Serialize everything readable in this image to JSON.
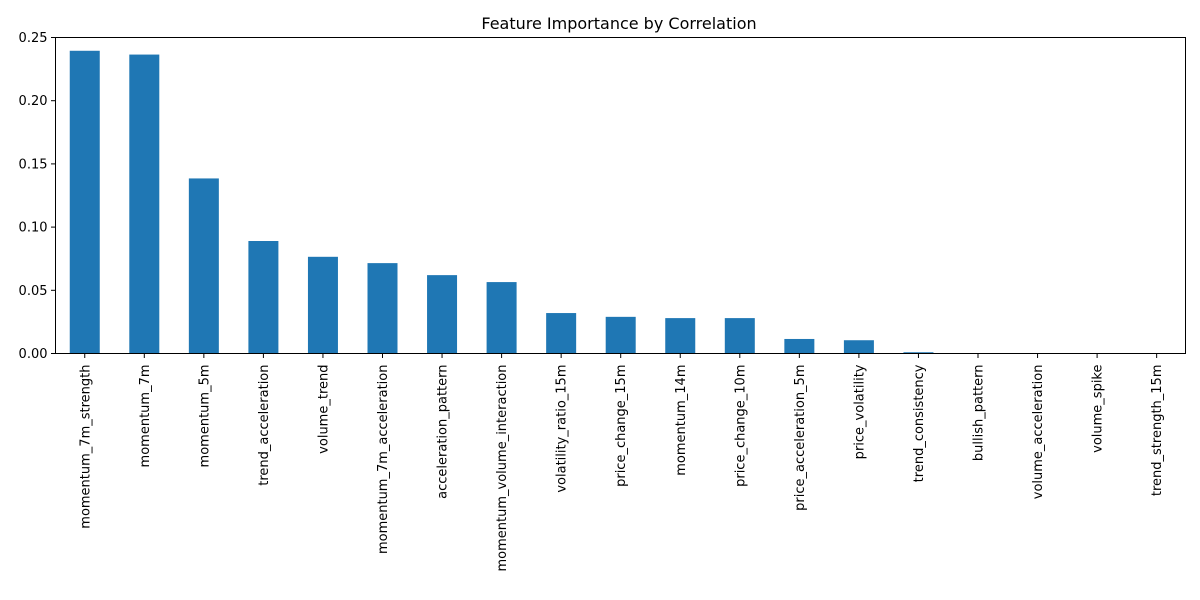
{
  "chart_data": {
    "type": "bar",
    "title": "Feature Importance by Correlation",
    "xlabel": "",
    "ylabel": "",
    "categories": [
      "momentum_7m_strength",
      "momentum_7m",
      "momentum_5m",
      "trend_acceleration",
      "volume_trend",
      "momentum_7m_acceleration",
      "acceleration_pattern",
      "momentum_volume_interaction",
      "volatility_ratio_15m",
      "price_change_15m",
      "momentum_14m",
      "price_change_10m",
      "price_acceleration_5m",
      "price_volatility",
      "trend_consistency",
      "bullish_pattern",
      "volume_acceleration",
      "volume_spike",
      "trend_strength_15m"
    ],
    "values": [
      0.2395,
      0.2365,
      0.1385,
      0.089,
      0.0765,
      0.0715,
      0.062,
      0.0565,
      0.032,
      0.029,
      0.028,
      0.028,
      0.0115,
      0.0105,
      0.001,
      0.0,
      0.0,
      0.0,
      0.0
    ],
    "ylim": [
      0,
      0.25
    ],
    "yticks": [
      "0.00",
      "0.05",
      "0.10",
      "0.15",
      "0.20",
      "0.25"
    ],
    "grid": false,
    "legend": "none",
    "bar_color": "#1f77b4"
  }
}
